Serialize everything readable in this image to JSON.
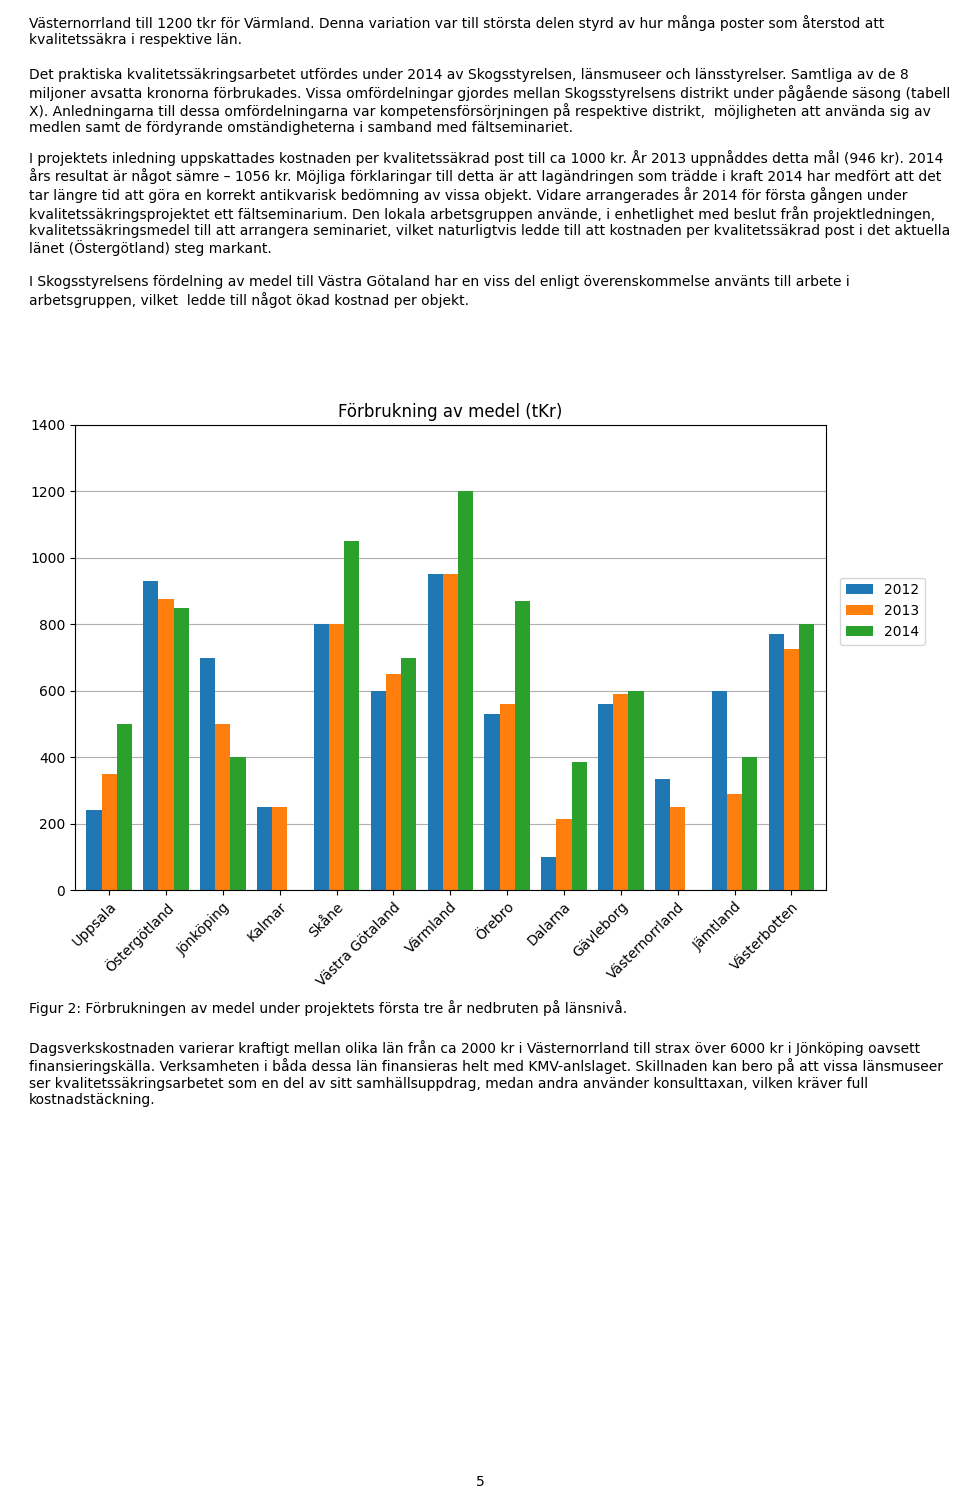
{
  "chart_data": {
    "type": "bar",
    "title": "Förbrukning av medel (tKr)",
    "categories": [
      "Uppsala",
      "Östergötland",
      "Jönköping",
      "Kalmar",
      "Skåne",
      "Västra Götaland",
      "Värmland",
      "Örebro",
      "Dalarna",
      "Gävleborg",
      "Västernorrland",
      "Jämtland",
      "Västerbotten"
    ],
    "series": [
      {
        "name": "2012",
        "values": [
          240,
          930,
          700,
          250,
          800,
          600,
          950,
          530,
          100,
          560,
          335,
          600,
          770
        ]
      },
      {
        "name": "2013",
        "values": [
          350,
          875,
          500,
          250,
          800,
          650,
          950,
          560,
          215,
          590,
          250,
          290,
          725
        ]
      },
      {
        "name": "2014",
        "values": [
          500,
          850,
          400,
          0,
          1050,
          700,
          1200,
          870,
          385,
          600,
          0,
          400,
          800
        ]
      }
    ],
    "ylim": [
      0,
      1400
    ],
    "yticks": [
      0,
      200,
      400,
      600,
      800,
      1000,
      1200,
      1400
    ],
    "grid": true,
    "legend": "right",
    "annotations": [
      "Västernorrland till 1200 tkr för Värmland. Denna variation var till största delen styrd av hur många poster som återstod att kvalitetssäkra i respektive län.",
      "Det praktiska kvalitetssäkringsarbetet utfördes under 2014 av Skogsstyrelsen, länsmuseer och länsstyrelser. Samtliga av de 8 miljoner avsatta kronorna förbrukades. Vissa omfördelningar gjordes mellan Skogsstyrelsens distrikt under pågående säsong (tabell X). Anledningarna till dessa omfördelningarna var kompetensförsörjningen på respektive distrikt,  möjligheten att använda sig av medlen samt de fördyrande omständigheterna i samband med fältseminariet.",
      "I projektets inledning uppskattades kostnaden per kvalitetssäkrad post till ca 1000 kr. År 2013 uppnåddes detta mål (946 kr). 2014 års resultat är något sämre – 1056 kr. Möjliga förklaringar till detta är att lagändringen som trädde i kraft 2014 har medfört att det tar längre tid att göra en korrekt antikvarisk bedömning av vissa objekt. Vidare arrangerades år 2014 för första gången under kvalitetssäkringsprojektet ett fältseminarium. Den lokala arbetsgruppen använde, i enhetlighet med beslut från projektledningen, kvalitetssäkringsmedel till att arrangera seminariet, vilket naturligtvis ledde till att kostnaden per kvalitetssäkrad post i det aktuella länet (Östergötland) steg markant.",
      "I Skogsstyrelsens fördelning av medel till Västra Götaland har en viss del enligt överenskommelse använts till arbete i arbetsgruppen, vilket  ledde till något ökad kostnad per objekt.",
      "Figur 2: Förbrukningen av medel under projektets första tre år nedbruten på länsnivå.",
      "Dagsverkskostnaden varierar kraftigt mellan olika län från ca 2000 kr i Västernorrland till strax över 6000 kr i Jönköping oavsett finansieringskälla. Verksamheten i båda dessa län finansieras helt med KMV-anlslaget. Skillnaden kan bero på att vissa länsmuseer ser kvalitetssäkringsarbetet som en del av sitt samhällsuppdrag, medan andra använder konsulttaxan, vilken kräver full kostnadstäckning.",
      "5"
    ]
  }
}
